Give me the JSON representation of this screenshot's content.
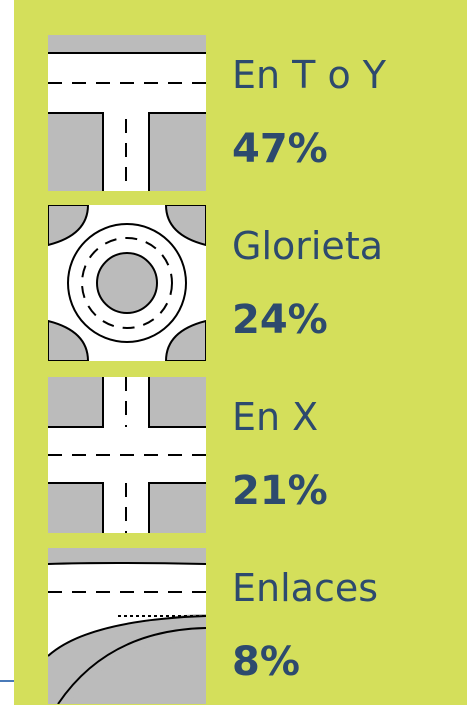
{
  "items": [
    {
      "label": "En T o Y",
      "value": "47%"
    },
    {
      "label": "Glorieta",
      "value": "24%"
    },
    {
      "label": "En X",
      "value": "21%"
    },
    {
      "label": "Enlaces",
      "value": "8%"
    }
  ]
}
